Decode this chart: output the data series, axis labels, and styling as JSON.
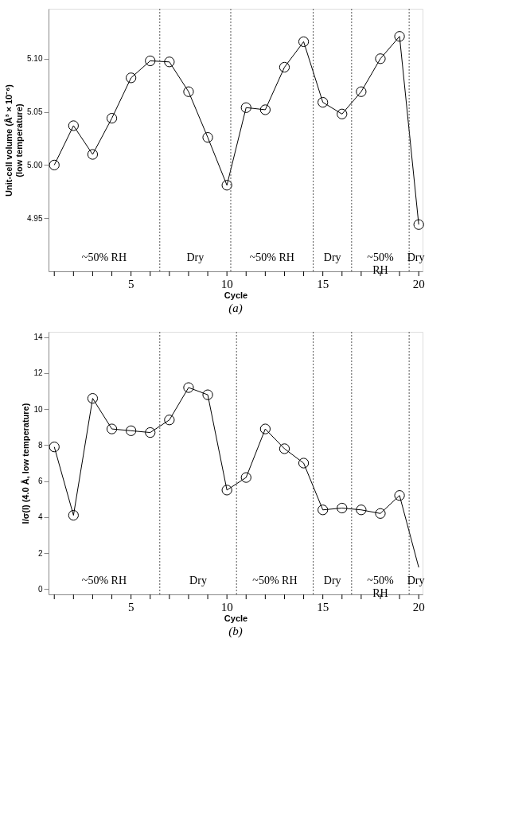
{
  "chart_data": [
    {
      "type": "line",
      "title": "(a)",
      "xlabel": "Cycle",
      "ylabel": "Unit-cell volume (Å³ × 10⁻⁶)\n(low temperature)",
      "x": [
        1,
        2,
        3,
        4,
        5,
        6,
        7,
        8,
        9,
        10,
        11,
        12,
        13,
        14,
        15,
        16,
        17,
        18,
        19,
        20
      ],
      "series": [
        {
          "color": "#000000",
          "marker": "circle",
          "values": [
            5.0,
            5.037,
            5.01,
            5.044,
            5.082,
            5.098,
            5.097,
            5.069,
            5.026,
            4.981,
            5.054,
            5.052,
            5.092,
            5.116,
            5.059,
            5.048,
            5.069,
            5.1,
            5.121,
            4.944
          ]
        }
      ],
      "xlim": [
        0.7,
        20.2
      ],
      "ylim": [
        4.9,
        5.147
      ],
      "xticks": [
        {
          "value": 1,
          "label": null
        },
        {
          "value": 2,
          "label": null
        },
        {
          "value": 3,
          "label": null
        },
        {
          "value": 4,
          "label": null
        },
        5,
        {
          "value": 6,
          "label": null
        },
        {
          "value": 7,
          "label": null
        },
        {
          "value": 8,
          "label": null
        },
        {
          "value": 9,
          "label": null
        },
        10,
        {
          "value": 11,
          "label": null
        },
        {
          "value": 12,
          "label": null
        },
        {
          "value": 13,
          "label": null
        },
        {
          "value": 14,
          "label": null
        },
        15,
        {
          "value": 16,
          "label": null
        },
        {
          "value": 17,
          "label": null
        },
        {
          "value": 18,
          "label": null
        },
        {
          "value": 19,
          "label": null
        },
        20
      ],
      "yticks": [
        {
          "value": 4.95,
          "label": "4.95"
        },
        {
          "value": 5.0,
          "label": "5.00"
        },
        {
          "value": 5.05,
          "label": "5.05"
        },
        {
          "value": 5.1,
          "label": "5.10"
        }
      ],
      "ref_lines": [
        {
          "axis": "x",
          "value": 6.5,
          "color": "#555555",
          "line_style": "dotted"
        },
        {
          "axis": "x",
          "value": 10.2,
          "color": "#555555",
          "line_style": "dotted"
        },
        {
          "axis": "x",
          "value": 14.5,
          "color": "#555555",
          "line_style": "dotted"
        },
        {
          "axis": "x",
          "value": 16.5,
          "color": "#555555",
          "line_style": "dotted"
        },
        {
          "axis": "x",
          "value": 19.5,
          "color": "#555555",
          "line_style": "dotted"
        }
      ],
      "annotations": [
        "~50% RH",
        "Dry",
        "~50% RH",
        "Dry",
        "~50%\nRH",
        "Dry"
      ],
      "grid": false,
      "legend": false
    },
    {
      "type": "line",
      "title": "(b)",
      "xlabel": "Cycle",
      "ylabel": "I/σ(I) (4.0 Å, low temperature)",
      "x": [
        1,
        2,
        3,
        4,
        5,
        6,
        7,
        8,
        9,
        10,
        11,
        12,
        13,
        14,
        15,
        16,
        17,
        18,
        19,
        20
      ],
      "series": [
        {
          "color": "#000000",
          "marker": "none",
          "values": [
            7.9,
            4.1,
            10.6,
            8.9,
            8.8,
            8.7,
            9.4,
            11.2,
            10.8,
            5.5,
            6.2,
            8.9,
            7.8,
            7.0,
            4.4,
            4.5,
            4.4,
            4.2,
            5.2,
            1.2
          ]
        },
        {
          "type": "scatter",
          "color": "#000000",
          "marker": "circle",
          "values": [
            7.9,
            4.1,
            10.6,
            8.9,
            8.8,
            8.7,
            9.4,
            11.2,
            10.8,
            5.5,
            6.2,
            8.9,
            7.8,
            7.0,
            4.4,
            4.5,
            4.4,
            4.2,
            5.2,
            null
          ]
        }
      ],
      "xlim": [
        0.7,
        20.2
      ],
      "ylim": [
        -0.3,
        14.3
      ],
      "xticks": [
        {
          "value": 1,
          "label": null
        },
        {
          "value": 2,
          "label": null
        },
        {
          "value": 3,
          "label": null
        },
        {
          "value": 4,
          "label": null
        },
        5,
        {
          "value": 6,
          "label": null
        },
        {
          "value": 7,
          "label": null
        },
        {
          "value": 8,
          "label": null
        },
        {
          "value": 9,
          "label": null
        },
        10,
        {
          "value": 11,
          "label": null
        },
        {
          "value": 12,
          "label": null
        },
        {
          "value": 13,
          "label": null
        },
        {
          "value": 14,
          "label": null
        },
        15,
        {
          "value": 16,
          "label": null
        },
        {
          "value": 17,
          "label": null
        },
        {
          "value": 18,
          "label": null
        },
        {
          "value": 19,
          "label": null
        },
        20
      ],
      "yticks": [
        0,
        2,
        4,
        6,
        8,
        10,
        12,
        14
      ],
      "ref_lines": [
        {
          "axis": "x",
          "value": 6.5,
          "color": "#555555",
          "line_style": "dotted"
        },
        {
          "axis": "x",
          "value": 10.5,
          "color": "#555555",
          "line_style": "dotted"
        },
        {
          "axis": "x",
          "value": 14.5,
          "color": "#555555",
          "line_style": "dotted"
        },
        {
          "axis": "x",
          "value": 16.5,
          "color": "#555555",
          "line_style": "dotted"
        },
        {
          "axis": "x",
          "value": 19.5,
          "color": "#555555",
          "line_style": "dotted"
        }
      ],
      "annotations": [
        "~50% RH",
        "Dry",
        "~50% RH",
        "Dry",
        "~50%\nRH",
        "Dry"
      ],
      "grid": false,
      "legend": false
    }
  ]
}
